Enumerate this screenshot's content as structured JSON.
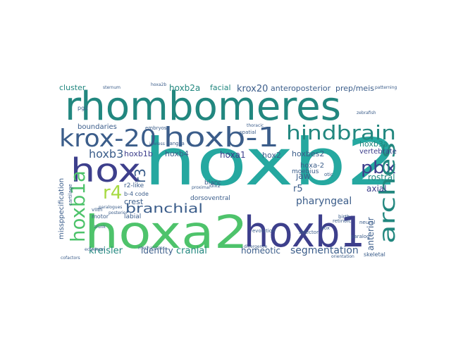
{
  "colors": {
    "background": "#ffffff",
    "teal": "#22877f",
    "blue": "#3b5d8a",
    "green": "#4ec36b",
    "indigo": "#3d3f8c",
    "purple": "#472c73",
    "lime": "#a7da42",
    "yellow": "#d2e21b",
    "cyan": "#25a8a0"
  },
  "words": [
    {
      "text": "rhombomeres"
    },
    {
      "text": "hoxb2"
    },
    {
      "text": "hoxa2"
    },
    {
      "text": "hoxb1"
    },
    {
      "text": "hoxb-1"
    },
    {
      "text": "krox-20"
    },
    {
      "text": "hox"
    },
    {
      "text": "hindbrain"
    },
    {
      "text": "arches"
    },
    {
      "text": "pbx"
    },
    {
      "text": "hoxb1a"
    },
    {
      "text": "hoxb3"
    },
    {
      "text": "r4"
    },
    {
      "text": "r3"
    },
    {
      "text": "branchial"
    },
    {
      "text": "krox20"
    },
    {
      "text": "anteroposterior"
    },
    {
      "text": "prep/meis"
    },
    {
      "text": "hoxb2a"
    },
    {
      "text": "facial"
    },
    {
      "text": "cluster"
    },
    {
      "text": "boundaries"
    },
    {
      "text": "crest"
    },
    {
      "text": "hoxb1b"
    },
    {
      "text": "hoxb4"
    },
    {
      "text": "hoxa1"
    },
    {
      "text": "hox2"
    },
    {
      "text": "hoxbes2"
    },
    {
      "text": "hoxa-2"
    },
    {
      "text": "hoxb3a"
    },
    {
      "text": "vertebrate"
    },
    {
      "text": "rostral"
    },
    {
      "text": "jaw"
    },
    {
      "text": "r5"
    },
    {
      "text": "axial"
    },
    {
      "text": "pharyngeal"
    },
    {
      "text": "segmentation"
    },
    {
      "text": "anterior"
    },
    {
      "text": "kreisler"
    },
    {
      "text": "identity"
    },
    {
      "text": "cranial"
    },
    {
      "text": "homeotic"
    },
    {
      "text": "missppecification"
    },
    {
      "text": "moebius"
    },
    {
      "text": "blanc"
    },
    {
      "text": "r2-like"
    },
    {
      "text": "b-4 code"
    },
    {
      "text": "labial"
    },
    {
      "text": "motor"
    },
    {
      "text": "sternum"
    },
    {
      "text": "hoxa2b"
    },
    {
      "text": "pg2"
    },
    {
      "text": "spatial"
    },
    {
      "text": "embryos"
    },
    {
      "text": "ganglia"
    },
    {
      "text": "thoracic"
    },
    {
      "text": "selector"
    },
    {
      "text": "retinoic"
    },
    {
      "text": "neural"
    },
    {
      "text": "zebrafish"
    },
    {
      "text": "patterning"
    },
    {
      "text": "dorsoventral"
    },
    {
      "text": "evolution"
    },
    {
      "text": "divergence"
    },
    {
      "text": "ectoderm"
    },
    {
      "text": "cofactors"
    },
    {
      "text": "skeletal"
    },
    {
      "text": "orientation"
    },
    {
      "text": "birth"
    },
    {
      "text": "otic"
    },
    {
      "text": "trunk"
    },
    {
      "text": "posterior"
    },
    {
      "text": "paralog"
    },
    {
      "text": "vIIth"
    },
    {
      "text": "cartilage"
    },
    {
      "text": "jawless"
    },
    {
      "text": "paralogues"
    },
    {
      "text": "dlx2"
    },
    {
      "text": "proximal"
    },
    {
      "text": "sox"
    },
    {
      "text": "mechanisms"
    }
  ]
}
